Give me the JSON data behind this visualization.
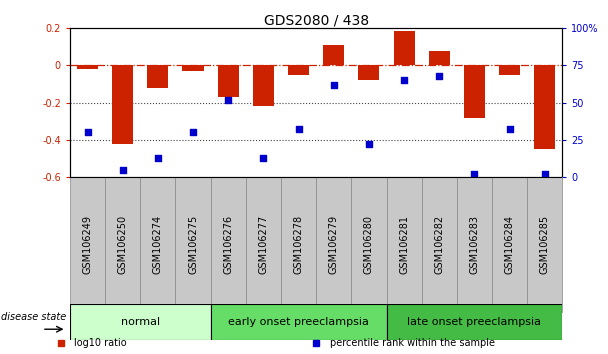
{
  "title": "GDS2080 / 438",
  "samples": [
    "GSM106249",
    "GSM106250",
    "GSM106274",
    "GSM106275",
    "GSM106276",
    "GSM106277",
    "GSM106278",
    "GSM106279",
    "GSM106280",
    "GSM106281",
    "GSM106282",
    "GSM106283",
    "GSM106284",
    "GSM106285"
  ],
  "log10_ratio": [
    -0.02,
    -0.42,
    -0.12,
    -0.03,
    -0.17,
    -0.22,
    -0.05,
    0.11,
    -0.08,
    0.185,
    0.08,
    -0.28,
    -0.05,
    -0.45
  ],
  "percentile_rank": [
    30,
    5,
    13,
    30,
    52,
    13,
    32,
    62,
    22,
    65,
    68,
    2,
    32,
    2
  ],
  "bar_color": "#cc2200",
  "dot_color": "#0000cc",
  "ylim_left": [
    -0.6,
    0.2
  ],
  "ylim_right": [
    0,
    100
  ],
  "yticks_left": [
    -0.6,
    -0.4,
    -0.2,
    0.0,
    0.2
  ],
  "ytick_labels_left": [
    "-0.6",
    "-0.4",
    "-0.2",
    "0",
    "0.2"
  ],
  "yticks_right": [
    0,
    25,
    50,
    75,
    100
  ],
  "ytick_labels_right": [
    "0",
    "25",
    "50",
    "75",
    "100%"
  ],
  "hline_zero_color": "#cc2200",
  "hline_dotted_color": "#444444",
  "hlines_dotted": [
    -0.2,
    -0.4
  ],
  "groups": [
    {
      "label": "normal",
      "start": 0,
      "end": 4,
      "color": "#ccffcc"
    },
    {
      "label": "early onset preeclampsia",
      "start": 4,
      "end": 9,
      "color": "#66dd66"
    },
    {
      "label": "late onset preeclampsia",
      "start": 9,
      "end": 14,
      "color": "#44bb44"
    }
  ],
  "legend_items": [
    {
      "label": "log10 ratio",
      "color": "#cc2200"
    },
    {
      "label": "percentile rank within the sample",
      "color": "#0000cc"
    }
  ],
  "disease_state_label": "disease state",
  "bar_width": 0.6,
  "dot_size": 25,
  "bg_color": "white",
  "tick_label_fontsize": 7,
  "title_fontsize": 10,
  "group_label_fontsize": 8,
  "sample_box_color": "#c8c8c8",
  "sample_box_edge": "#888888"
}
